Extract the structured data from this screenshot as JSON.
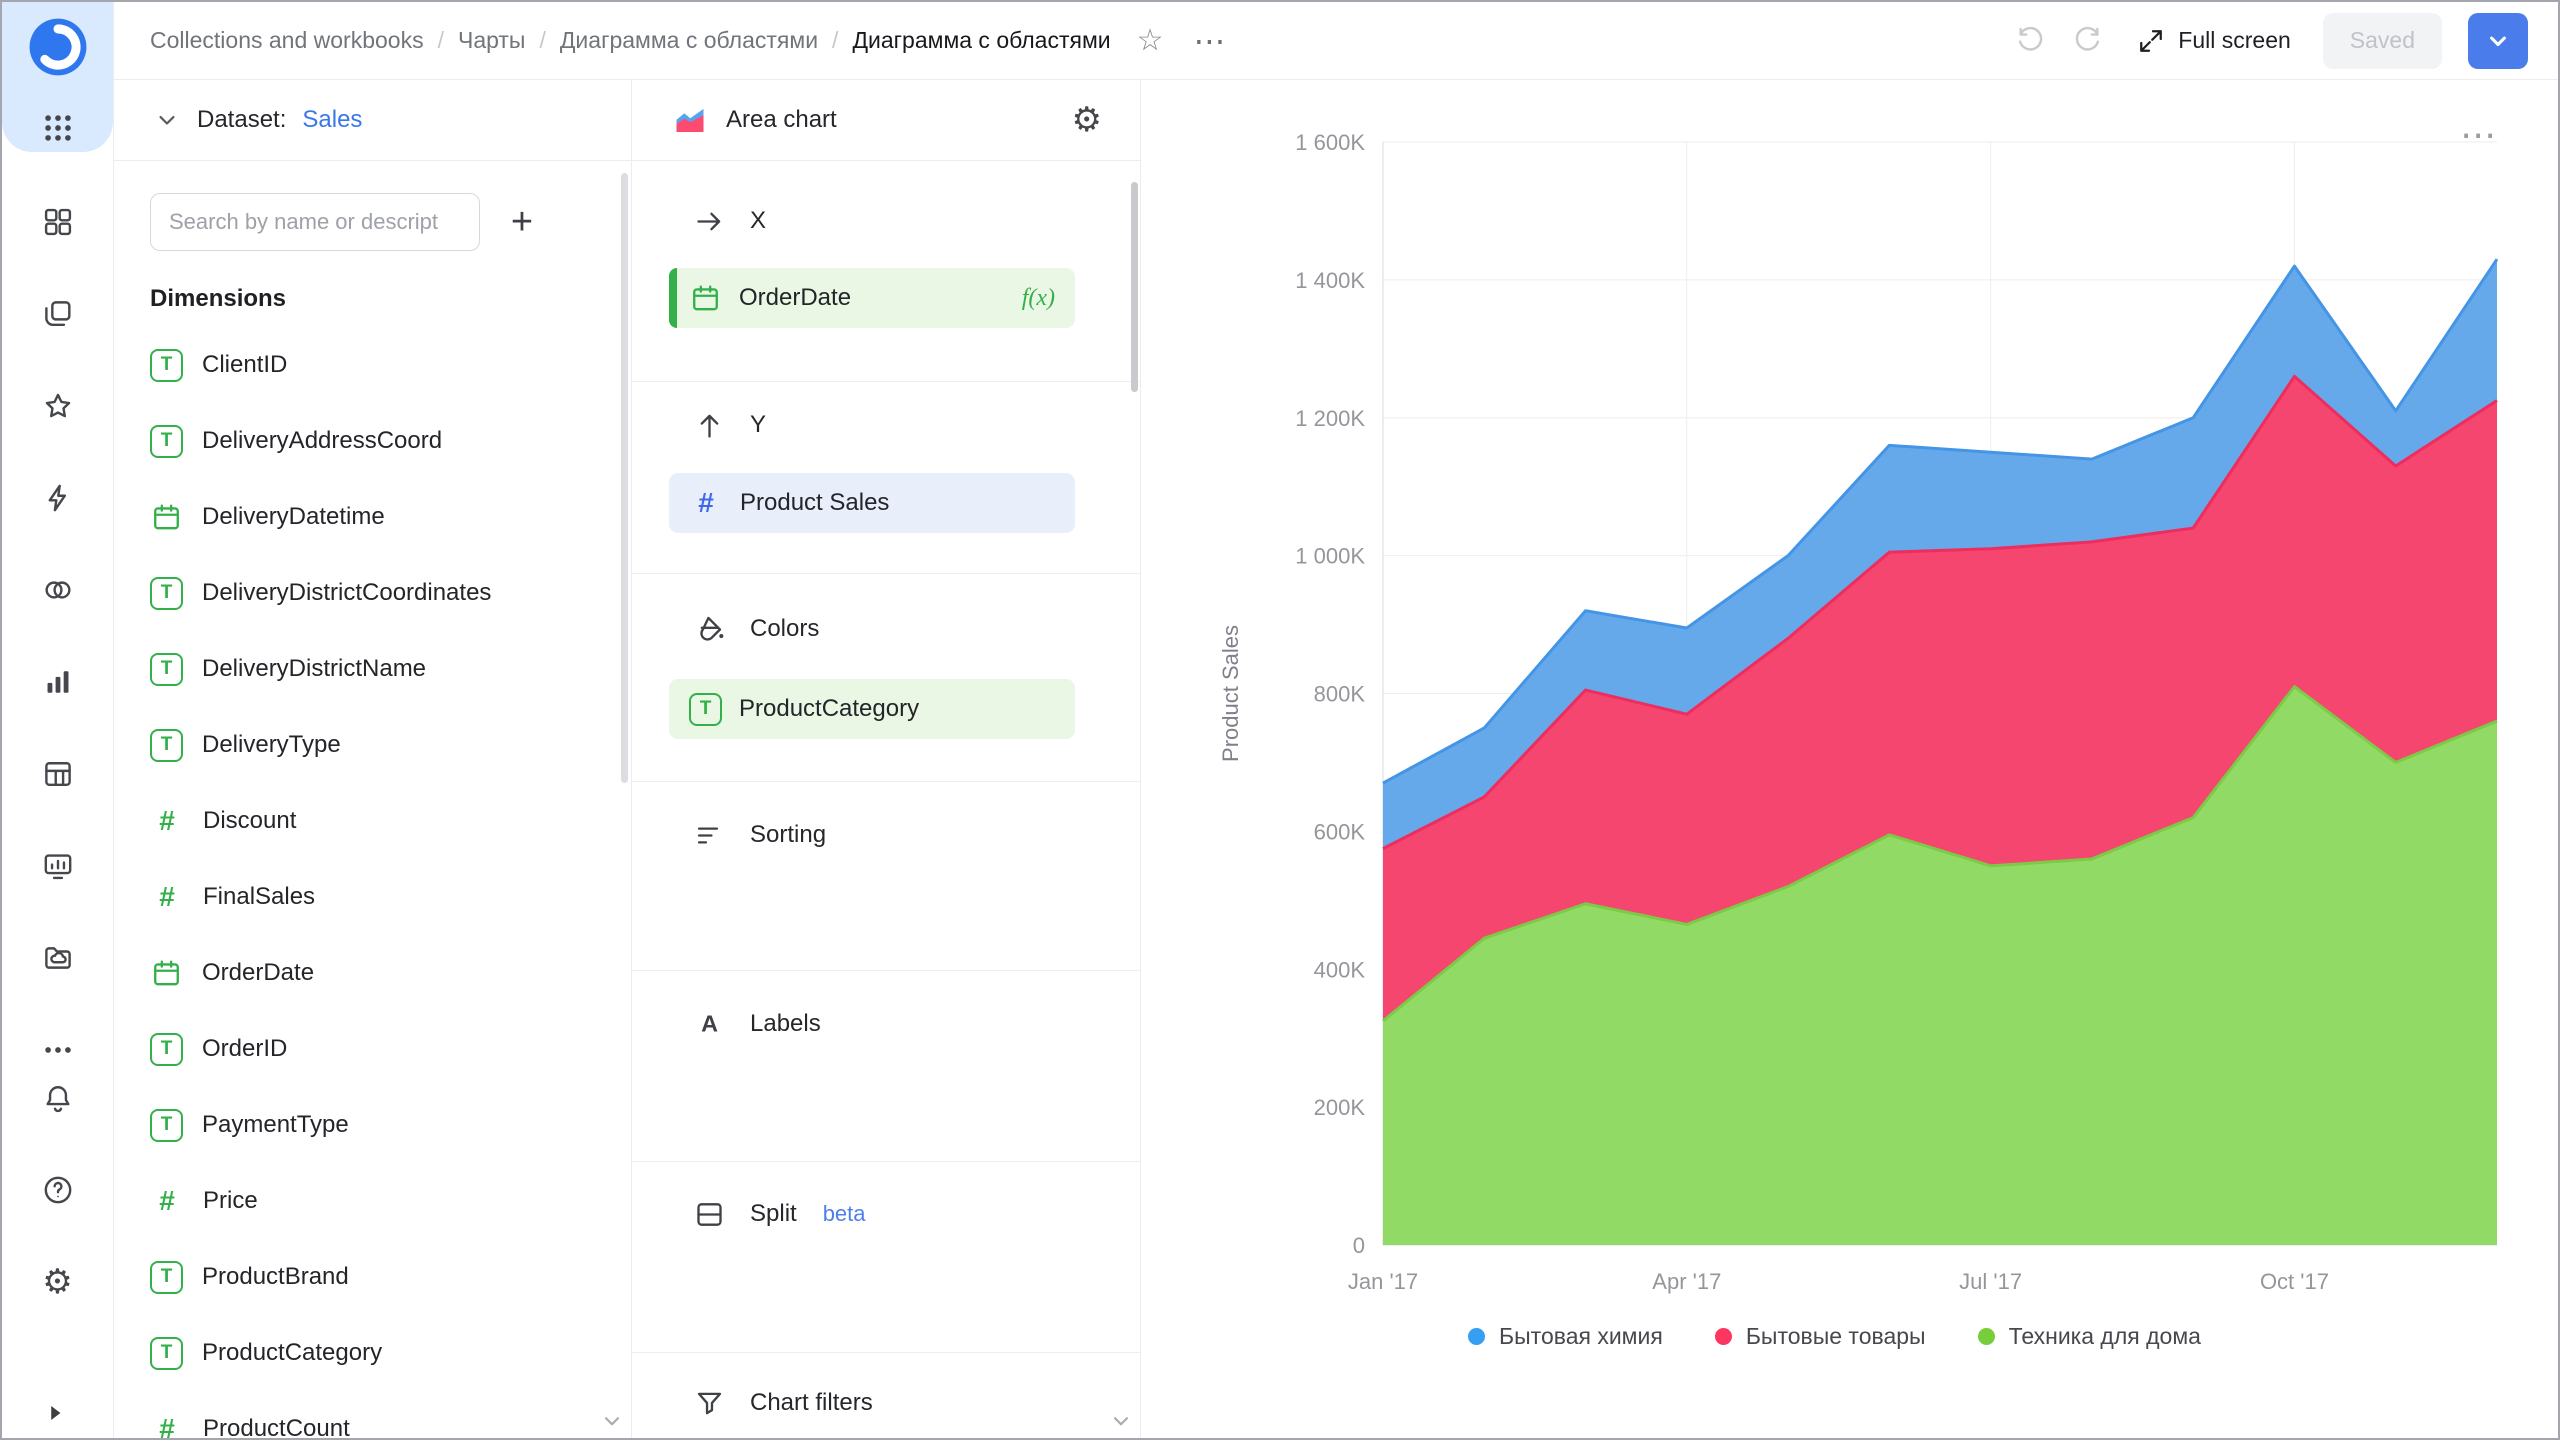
{
  "theme": {
    "green": "#34B04A",
    "blue_field": "#3F68E8",
    "link": "#3B77E8",
    "primary_button": "#4A7CEB",
    "beta": "#4E7FEF"
  },
  "topbar": {
    "breadcrumbs": [
      "Collections and workbooks",
      "Чарты",
      "Диаграмма с областями",
      "Диаграмма с областями"
    ],
    "full_screen_label": "Full screen",
    "saved_button": "Saved"
  },
  "rail": {
    "main_icons": [
      "dashboards",
      "collections",
      "favorites-star",
      "quick-actions-bolt",
      "datasets-circles",
      "charts-bars",
      "tables-grid",
      "monitoring-screen",
      "storage-folder",
      "more-ellipsis"
    ],
    "bottom_icons": [
      "notifications-bell",
      "help-question",
      "settings-gear"
    ]
  },
  "dataset_panel": {
    "header_label": "Dataset:",
    "dataset_name": "Sales",
    "search_placeholder": "Search by name or descript",
    "section_title": "Dimensions",
    "fields": [
      {
        "name": "ClientID",
        "type": "string"
      },
      {
        "name": "DeliveryAddressCoord",
        "type": "string"
      },
      {
        "name": "DeliveryDatetime",
        "type": "date"
      },
      {
        "name": "DeliveryDistrictCoordinates",
        "type": "string"
      },
      {
        "name": "DeliveryDistrictName",
        "type": "string"
      },
      {
        "name": "DeliveryType",
        "type": "string"
      },
      {
        "name": "Discount",
        "type": "number"
      },
      {
        "name": "FinalSales",
        "type": "number"
      },
      {
        "name": "OrderDate",
        "type": "date"
      },
      {
        "name": "OrderID",
        "type": "string"
      },
      {
        "name": "PaymentType",
        "type": "string"
      },
      {
        "name": "Price",
        "type": "number"
      },
      {
        "name": "ProductBrand",
        "type": "string"
      },
      {
        "name": "ProductCategory",
        "type": "string"
      },
      {
        "name": "ProductCount",
        "type": "number"
      }
    ]
  },
  "config_panel": {
    "title": "Area chart",
    "sections": [
      {
        "id": "x",
        "icon": "x-arrow",
        "label": "X",
        "fields": [
          {
            "name": "OrderDate",
            "type": "date",
            "accent": "green",
            "accent_bar": true,
            "formula": "f(x)"
          }
        ]
      },
      {
        "id": "y",
        "icon": "y-arrow",
        "label": "Y",
        "fields": [
          {
            "name": "Product Sales",
            "type": "number",
            "accent": "blue"
          }
        ]
      },
      {
        "id": "colors",
        "icon": "colors-bucket",
        "label": "Colors",
        "fields": [
          {
            "name": "ProductCategory",
            "type": "string",
            "accent": "green"
          }
        ]
      },
      {
        "id": "sorting",
        "icon": "sort-lines",
        "label": "Sorting",
        "fields": []
      },
      {
        "id": "labels",
        "icon": "labels-a",
        "label": "Labels",
        "fields": []
      },
      {
        "id": "split",
        "icon": "split-rect",
        "label": "Split",
        "badge": "beta",
        "fields": []
      },
      {
        "id": "filters",
        "icon": "filter-funnel",
        "label": "Chart filters",
        "fields": []
      }
    ]
  },
  "chart_data": {
    "type": "area",
    "stacked": true,
    "x": [
      "Jan '17",
      "Feb '17",
      "Mar '17",
      "Apr '17",
      "May '17",
      "Jun '17",
      "Jul '17",
      "Aug '17",
      "Sep '17",
      "Oct '17",
      "Nov '17",
      "Dec '17"
    ],
    "x_tick_labels": [
      "Jan '17",
      "Apr '17",
      "Jul '17",
      "Oct '17"
    ],
    "x_tick_positions": [
      0,
      3,
      6,
      9
    ],
    "ylabel": "Product Sales",
    "ylim": [
      0,
      1600
    ],
    "y_tick_values": [
      0,
      200,
      400,
      600,
      800,
      1000,
      1200,
      1400,
      1600
    ],
    "y_ticks": [
      "0",
      "200K",
      "400K",
      "600K",
      "800K",
      "1 000K",
      "1 200K",
      "1 400K",
      "1 600K"
    ],
    "unit": "K (thousands)",
    "grid": true,
    "legend_position": "bottom",
    "series": [
      {
        "name": "Бытовая химия",
        "color": "#66A9EA",
        "stroke": "#4495E6",
        "dot": "#35A0F2",
        "values": [
          95,
          100,
          115,
          125,
          120,
          155,
          140,
          120,
          160,
          160,
          80,
          205
        ]
      },
      {
        "name": "Бытовые товары",
        "color": "#F4466E",
        "stroke": "#EF2C5E",
        "dot": "#FC3660",
        "values": [
          250,
          205,
          310,
          305,
          360,
          410,
          460,
          460,
          420,
          450,
          430,
          465
        ]
      },
      {
        "name": "Техника для дома",
        "color": "#92DA66",
        "stroke": "#7BCB46",
        "dot": "#77CD3A",
        "values": [
          325,
          445,
          495,
          465,
          520,
          595,
          550,
          560,
          620,
          810,
          700,
          760
        ]
      }
    ]
  }
}
